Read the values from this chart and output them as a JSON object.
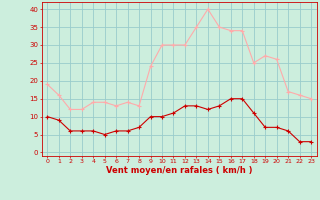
{
  "hours": [
    0,
    1,
    2,
    3,
    4,
    5,
    6,
    7,
    8,
    9,
    10,
    11,
    12,
    13,
    14,
    15,
    16,
    17,
    18,
    19,
    20,
    21,
    22,
    23
  ],
  "wind_avg": [
    10,
    9,
    6,
    6,
    6,
    5,
    6,
    6,
    7,
    10,
    10,
    11,
    13,
    13,
    12,
    13,
    15,
    15,
    11,
    7,
    7,
    6,
    3,
    3
  ],
  "wind_gust": [
    19,
    16,
    12,
    12,
    14,
    14,
    13,
    14,
    13,
    24,
    30,
    30,
    30,
    35,
    40,
    35,
    34,
    34,
    25,
    27,
    26,
    17,
    16,
    15
  ],
  "avg_color": "#cc0000",
  "gust_color": "#ffaaaa",
  "bg_color": "#cceedd",
  "grid_color": "#99cccc",
  "xlabel": "Vent moyen/en rafales ( km/h )",
  "xlabel_color": "#cc0000",
  "yticks": [
    0,
    5,
    10,
    15,
    20,
    25,
    30,
    35,
    40
  ],
  "ylim": [
    -1,
    42
  ],
  "xlim": [
    -0.5,
    23.5
  ]
}
